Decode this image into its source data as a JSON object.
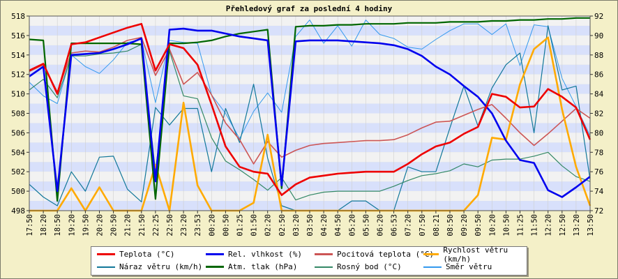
{
  "chart_data": {
    "type": "line",
    "title": "Přehledový graf za poslední 4 hodiny",
    "x": [
      "17:50",
      "18:20",
      "18:50",
      "19:20",
      "19:50",
      "20:20",
      "20:50",
      "21:20",
      "21:50",
      "22:25",
      "22:50",
      "23:20",
      "23:53",
      "00:20",
      "00:50",
      "01:25",
      "01:50",
      "02:20",
      "02:50",
      "03:20",
      "03:50",
      "04:20",
      "04:50",
      "05:20",
      "05:50",
      "06:20",
      "06:53",
      "07:20",
      "07:50",
      "08:21",
      "08:50",
      "09:20",
      "09:50",
      "10:20",
      "10:50",
      "11:25",
      "11:50",
      "12:20",
      "12:50",
      "13:20",
      "13:50"
    ],
    "left_axis": {
      "ylim": [
        498,
        518
      ],
      "ticks": [
        "498",
        "500",
        "502",
        "504",
        "506",
        "508",
        "510",
        "512",
        "514",
        "516",
        "518"
      ]
    },
    "right_axis": {
      "ylim": [
        72,
        92
      ],
      "ticks": [
        "72",
        "74",
        "76",
        "78",
        "80",
        "82",
        "84",
        "86",
        "88",
        "90",
        "92"
      ]
    },
    "grid": true,
    "legend_position": "bottom",
    "colors": {
      "background": "#f4f0c8",
      "plot_band_light": "#f2f2f2",
      "plot_band_dark": "#d8e0fb"
    },
    "series": [
      {
        "name": "Teplota (°C)",
        "color": "#ee0000",
        "axis": "left",
        "width": 2.6,
        "values": [
          512.4,
          513.1,
          510.0,
          515.1,
          515.3,
          515.8,
          516.3,
          516.8,
          517.2,
          512.4,
          515.1,
          514.7,
          513.0,
          508.9,
          504.6,
          502.5,
          502.0,
          501.8,
          499.6,
          500.7,
          501.4,
          501.6,
          501.8,
          501.9,
          502.0,
          502.0,
          502.0,
          502.8,
          503.8,
          504.6,
          505.0,
          505.9,
          506.6,
          510.0,
          509.7,
          508.6,
          508.7,
          510.5,
          509.7,
          508.6,
          505.3
        ]
      },
      {
        "name": "Rel. vlhkost (%)",
        "color": "#0000ee",
        "axis": "right",
        "width": 2.6,
        "values": [
          85.8,
          86.8,
          74.0,
          88.0,
          88.1,
          88.2,
          88.6,
          89.1,
          89.7,
          75.0,
          90.6,
          90.7,
          90.5,
          90.5,
          90.2,
          89.9,
          89.7,
          89.5,
          74.6,
          89.4,
          89.5,
          89.5,
          89.5,
          89.4,
          89.3,
          89.2,
          89.0,
          88.6,
          87.9,
          86.8,
          86.0,
          84.8,
          83.7,
          82.0,
          79.2,
          77.2,
          76.9,
          74.1,
          73.4,
          74.4,
          75.5
        ]
      },
      {
        "name": "Pocitová teplota (°C)",
        "color": "#cc5555",
        "axis": "left",
        "width": 1.6,
        "values": [
          512.3,
          513.0,
          510.2,
          514.2,
          514.4,
          514.3,
          514.8,
          515.5,
          515.8,
          511.9,
          514.6,
          511.0,
          512.2,
          509.9,
          507.0,
          505.3,
          502.8,
          505.1,
          503.5,
          504.2,
          504.7,
          504.9,
          505.0,
          505.1,
          505.2,
          505.2,
          505.3,
          505.8,
          506.5,
          507.1,
          507.2,
          507.8,
          508.4,
          508.9,
          507.5,
          506.0,
          504.7,
          505.9,
          507.2,
          508.5,
          507.5
        ]
      },
      {
        "name": "Rychlost větru (km/h)",
        "color": "#ffaa00",
        "axis": "left",
        "width": 2.6,
        "values": [
          498,
          498,
          498,
          500.3,
          498,
          500.4,
          498,
          498,
          498,
          502.7,
          498,
          509.1,
          500.6,
          498,
          498,
          498,
          498.8,
          505.8,
          498,
          498,
          498,
          498,
          498,
          498,
          498,
          498,
          498,
          498,
          498,
          498,
          498,
          498,
          499.6,
          505.5,
          505.3,
          511.0,
          514.6,
          515.8,
          508.4,
          502.5,
          498.5
        ]
      },
      {
        "name": "Náraz větru (km/h)",
        "color": "#117799",
        "axis": "left",
        "width": 1.2,
        "values": [
          500.7,
          499.4,
          498.5,
          502.0,
          500.0,
          503.5,
          503.6,
          500.2,
          498.9,
          508.6,
          506.8,
          508.5,
          508.5,
          502.0,
          508.5,
          505.0,
          511.0,
          503.4,
          498.5,
          498.0,
          498.0,
          498.0,
          498.0,
          499.0,
          499.0,
          498.0,
          498.0,
          502.5,
          502.0,
          502.0,
          506.5,
          510.8,
          506.7,
          510.6,
          513.0,
          514.2,
          506.0,
          517.0,
          510.4,
          510.8,
          501.2
        ]
      },
      {
        "name": "Atm. tlak (hPa)",
        "color": "#006600",
        "axis": "left",
        "width": 2.2,
        "values": [
          515.6,
          515.5,
          499.0,
          515.2,
          515.2,
          515.2,
          515.2,
          515.2,
          515.1,
          499.2,
          515.2,
          515.2,
          515.3,
          515.5,
          515.9,
          516.2,
          516.4,
          516.6,
          500.3,
          516.9,
          517.0,
          517.0,
          517.1,
          517.1,
          517.2,
          517.2,
          517.2,
          517.3,
          517.3,
          517.3,
          517.4,
          517.4,
          517.4,
          517.5,
          517.5,
          517.6,
          517.6,
          517.7,
          517.7,
          517.8,
          517.8
        ]
      },
      {
        "name": "Rosný bod (°C)",
        "color": "#338866",
        "axis": "left",
        "width": 1.2,
        "values": [
          510.4,
          511.5,
          509.6,
          513.9,
          513.9,
          514.1,
          514.2,
          514.4,
          515.1,
          502.0,
          514.4,
          509.8,
          509.5,
          505.5,
          503.1,
          502.2,
          501.2,
          500.1,
          501.4,
          499.1,
          499.6,
          499.9,
          500.0,
          500.0,
          500.0,
          500.0,
          500.5,
          501.1,
          501.6,
          501.8,
          502.1,
          502.8,
          502.5,
          503.2,
          503.3,
          503.3,
          503.6,
          504.0,
          502.6,
          501.5,
          501.0
        ]
      },
      {
        "name": "Směr větru",
        "color": "#3399ee",
        "axis": "left",
        "width": 1.0,
        "values": [
          511.2,
          509.8,
          509.0,
          514.0,
          512.8,
          512.1,
          513.5,
          515.3,
          515.6,
          509.1,
          515.5,
          515.3,
          515.2,
          509.9,
          508.0,
          505.4,
          508.2,
          510.1,
          508.1,
          515.9,
          517.6,
          515.2,
          517.0,
          514.9,
          517.6,
          516.1,
          515.7,
          514.8,
          514.6,
          515.6,
          516.5,
          517.2,
          517.2,
          516.1,
          517.2,
          512.9,
          517.1,
          516.9,
          511.6,
          508.7,
          505.7
        ]
      }
    ]
  }
}
